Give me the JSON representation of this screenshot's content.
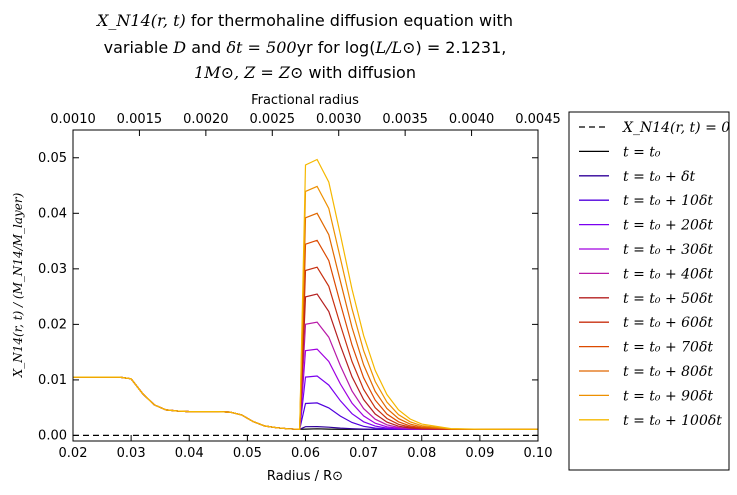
{
  "title": {
    "line1_math": "X_N14(r, t)",
    "line1_text": "for thermohaline diffusion equation with",
    "line2_prefix": "variable",
    "line2_D": "D",
    "line2_and": "and",
    "line2_dt": "δt = 500",
    "line2_yr": "yr for log(",
    "line2_L": "L/L⊙",
    "line2_val": ") = 2.1231,",
    "line3_mass": "1M⊙, Z = Z⊙",
    "line3_text": "with diffusion"
  },
  "chart_data": {
    "type": "line",
    "xlabel": "Radius / R⊙",
    "ylabel": "X_N14(r, t) / (M_N14/M_layer)",
    "top_xlabel": "Fractional radius",
    "xlim": [
      0.02,
      0.1
    ],
    "ylim": [
      -0.001,
      0.055
    ],
    "top_xlim": [
      0.001,
      0.0045
    ],
    "x_ticks": [
      "0.02",
      "0.03",
      "0.04",
      "0.05",
      "0.06",
      "0.07",
      "0.08",
      "0.09",
      "0.10"
    ],
    "y_ticks": [
      "0.00",
      "0.01",
      "0.02",
      "0.03",
      "0.04",
      "0.05"
    ],
    "top_ticks": [
      "0.0010",
      "0.0015",
      "0.0020",
      "0.0025",
      "0.0030",
      "0.0035",
      "0.0040",
      "0.0045"
    ],
    "legend_position": "outside-right",
    "grid": false,
    "x": [
      0.02,
      0.025,
      0.028,
      0.03,
      0.032,
      0.034,
      0.036,
      0.038,
      0.04,
      0.045,
      0.047,
      0.049,
      0.051,
      0.053,
      0.055,
      0.057,
      0.059,
      0.06,
      0.062,
      0.064,
      0.066,
      0.068,
      0.07,
      0.072,
      0.074,
      0.076,
      0.078,
      0.08,
      0.085,
      0.09,
      0.095,
      0.1
    ],
    "base_profile": [
      0.0105,
      0.0105,
      0.0105,
      0.0102,
      0.0075,
      0.0055,
      0.0046,
      0.0044,
      0.0043,
      0.0043,
      0.0042,
      0.0037,
      0.0025,
      0.0017,
      0.0014,
      0.0012,
      0.0011,
      0.0011,
      0.0011,
      0.0011,
      0.0011,
      0.0011,
      0.0011,
      0.0011,
      0.0011,
      0.0011,
      0.0011,
      0.0011,
      0.0011,
      0.0011,
      0.0011,
      0.0011
    ],
    "series": [
      {
        "name": "X_N14(r, t) = 0",
        "color": "#000000",
        "dashed": true,
        "values": [
          0,
          0,
          0,
          0,
          0,
          0,
          0,
          0,
          0,
          0,
          0,
          0,
          0,
          0,
          0,
          0,
          0,
          0,
          0,
          0,
          0,
          0,
          0,
          0,
          0,
          0,
          0,
          0,
          0,
          0,
          0,
          0
        ]
      },
      {
        "name": "t = t₀",
        "color": "#000000",
        "peak": 0.0012
      },
      {
        "name": "t = t₀ + δt",
        "color": "#30009a",
        "peak": 0.0016
      },
      {
        "name": "t = t₀ + 10δt",
        "color": "#5000dd",
        "peak": 0.006
      },
      {
        "name": "t = t₀ + 20δt",
        "color": "#7a00f0",
        "peak": 0.011
      },
      {
        "name": "t = t₀ + 30δt",
        "color": "#a000e0",
        "peak": 0.016
      },
      {
        "name": "t = t₀ + 40δt",
        "color": "#b81aa8",
        "peak": 0.021
      },
      {
        "name": "t = t₀ + 50δt",
        "color": "#b52020",
        "peak": 0.0262
      },
      {
        "name": "t = t₀ + 60δt",
        "color": "#c83010",
        "peak": 0.0312
      },
      {
        "name": "t = t₀ + 70δt",
        "color": "#dc4a00",
        "peak": 0.0362
      },
      {
        "name": "t = t₀ + 80δt",
        "color": "#e06800",
        "peak": 0.0412
      },
      {
        "name": "t = t₀ + 90δt",
        "color": "#ee9000",
        "peak": 0.0462
      },
      {
        "name": "t = t₀ + 100δt",
        "color": "#f5b800",
        "peak": 0.0512
      }
    ]
  }
}
